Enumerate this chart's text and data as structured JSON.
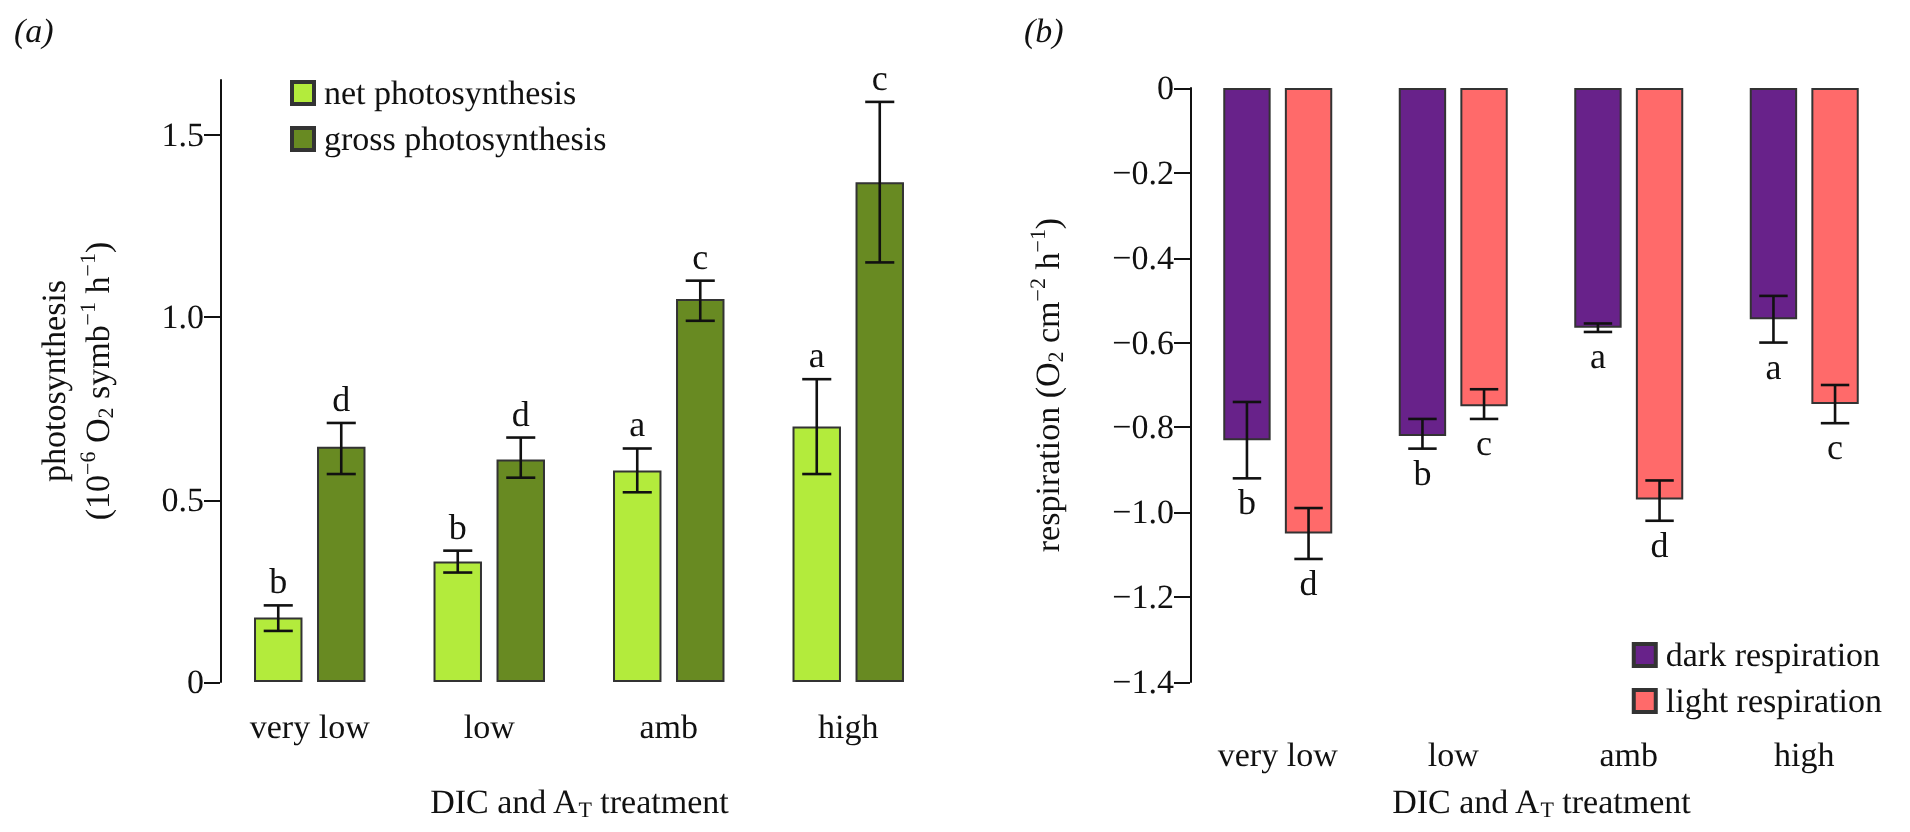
{
  "chart_data": [
    {
      "type": "bar",
      "title": "(a)",
      "xlabel": "DIC and A$_{T}$ treatment",
      "ylabel": "photosynthesis\n(10$^{−6}$ O$_{2}$ symb$^{−1}$ h$^{−1}$)",
      "categories": [
        "very low",
        "low",
        "amb",
        "high"
      ],
      "series": [
        {
          "name": "net photosynthesis",
          "color": "#b3eb3c",
          "values": [
            0.177,
            0.33,
            0.58,
            0.7
          ],
          "errors": [
            [
              0.14,
              0.21
            ],
            [
              0.3,
              0.36
            ],
            [
              0.52,
              0.64
            ],
            [
              0.57,
              0.83
            ]
          ]
        },
        {
          "name": "gross photosynthesis",
          "color": "#688a22",
          "values": [
            0.645,
            0.61,
            1.05,
            1.37
          ],
          "errors": [
            [
              0.57,
              0.71
            ],
            [
              0.56,
              0.67
            ],
            [
              0.99,
              1.1
            ],
            [
              1.15,
              1.59
            ]
          ]
        }
      ],
      "ylim": [
        0,
        1.65
      ],
      "yticks": [
        0,
        0.5,
        {
          "value": 1,
          "label": "1.0"
        },
        1.5
      ],
      "grid": false,
      "legend": "top left",
      "annotations": [
        "b",
        "b",
        "a",
        "a",
        "d",
        "d",
        "c",
        "c"
      ]
    },
    {
      "type": "bar",
      "title": "(b)",
      "xlabel": "DIC and A$_{T}$ treatment",
      "ylabel": "respiration (O$_{2}$ cm$^{−2}$ h$^{−1}$)",
      "categories": [
        "very low",
        "low",
        "amb",
        "high"
      ],
      "series": [
        {
          "name": "dark respiration",
          "color": "#68228a",
          "values": [
            -0.83,
            -0.82,
            -0.565,
            -0.545
          ],
          "errors": [
            [
              -0.92,
              -0.74
            ],
            [
              -0.85,
              -0.78
            ],
            [
              -0.575,
              -0.555
            ],
            [
              -0.6,
              -0.49
            ]
          ]
        },
        {
          "name": "light respiration",
          "color": "#ff6a6a",
          "values": [
            -1.05,
            -0.75,
            -0.97,
            -0.745
          ],
          "errors": [
            [
              -1.11,
              -0.99
            ],
            [
              -0.78,
              -0.71
            ],
            [
              -1.02,
              -0.925
            ],
            [
              -0.79,
              -0.7
            ]
          ]
        }
      ],
      "ylim": [
        -1.4,
        0
      ],
      "yticks": [
        {
          "value": -1.4,
          "label": "−1.4"
        },
        {
          "value": -1.2,
          "label": "−1.2"
        },
        {
          "value": -1,
          "label": "−1.0"
        },
        {
          "value": -0.8,
          "label": "−0.8"
        },
        {
          "value": -0.6,
          "label": "−0.6"
        },
        {
          "value": -0.4,
          "label": "−0.4"
        },
        {
          "value": -0.2,
          "label": "−0.2"
        },
        0
      ],
      "grid": false,
      "legend": "bottom right",
      "annotations": [
        "b",
        "b",
        "a",
        "a",
        "d",
        "c",
        "d",
        "c"
      ]
    }
  ]
}
